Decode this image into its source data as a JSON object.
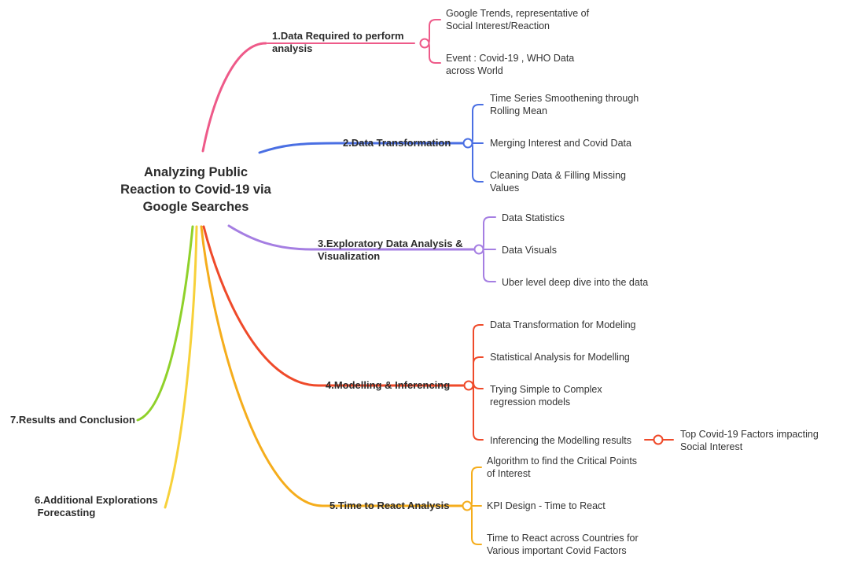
{
  "root": {
    "line1": "Analyzing Public",
    "line2": "Reaction to Covid-19 via",
    "line3": "Google Searches"
  },
  "branches": [
    {
      "id": "b1",
      "color": "#ee5a89",
      "label": [
        "1.Data Required to perform",
        "analysis"
      ],
      "children": [
        [
          "Google Trends, representative of",
          "Social Interest/Reaction"
        ],
        [
          "Event : Covid-19 , WHO Data",
          "across World"
        ]
      ]
    },
    {
      "id": "b2",
      "color": "#4a6fe3",
      "label": [
        "2.Data Transformation"
      ],
      "children": [
        [
          "Time Series Smoothening through",
          "Rolling Mean"
        ],
        [
          "Merging Interest and Covid Data"
        ],
        [
          "Cleaning Data & Filling Missing",
          "Values"
        ]
      ]
    },
    {
      "id": "b3",
      "color": "#a57ee2",
      "label": [
        "3.Exploratory Data Analysis &",
        "Visualization"
      ],
      "children": [
        [
          "Data Statistics"
        ],
        [
          "Data Visuals"
        ],
        [
          "Uber level deep dive into the data"
        ]
      ]
    },
    {
      "id": "b4",
      "color": "#ef4a2a",
      "label": [
        "4.Modelling & Inferencing"
      ],
      "children": [
        [
          "Data Transformation for Modeling"
        ],
        [
          "Statistical Analysis for Modelling"
        ],
        [
          "Trying Simple to Complex",
          "regression models"
        ],
        [
          "Inferencing the Modelling results"
        ]
      ],
      "grandchild": [
        "Top Covid-19 Factors impacting",
        "Social Interest"
      ]
    },
    {
      "id": "b5",
      "color": "#f5ad1c",
      "label": [
        "5.Time to React Analysis"
      ],
      "children": [
        [
          "Algorithm to find the Critical Points",
          "of Interest"
        ],
        [
          "KPI Design - Time to React"
        ],
        [
          "Time to React across Countries for",
          "Various important Covid Factors"
        ]
      ]
    },
    {
      "id": "b6",
      "color": "#f7d13a",
      "label": [
        "6.Additional Explorations",
        " Forecasting"
      ],
      "children": []
    },
    {
      "id": "b7",
      "color": "#8fd12a",
      "label": [
        "7.Results and Conclusion"
      ],
      "children": []
    }
  ]
}
